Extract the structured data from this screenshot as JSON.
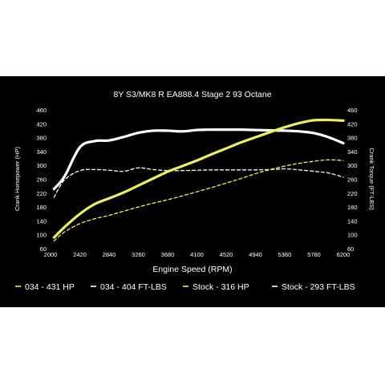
{
  "chart_data": {
    "type": "line",
    "title": "8Y S3/MK8 R EA888.4 Stage 2 93 Octane",
    "xlabel": "Engine Speed (RPM)",
    "ylabel_left": "Crank Horsepower (HP)",
    "ylabel_right": "Crank Torque (FT-LBS)",
    "xlim": [
      2000,
      6200
    ],
    "ylim": [
      60,
      460
    ],
    "x_ticks": [
      "2000",
      "2420",
      "2840",
      "3260",
      "3680",
      "4100",
      "4520",
      "4940",
      "5360",
      "5780",
      "6200"
    ],
    "y_ticks": [
      "60",
      "80",
      "100",
      "120",
      "140",
      "160",
      "180",
      "200",
      "220",
      "240",
      "260",
      "280",
      "300",
      "320",
      "340",
      "360",
      "380",
      "400",
      "420",
      "440",
      "460"
    ],
    "grid": false,
    "legend_position": "bottom",
    "colors": {
      "background": "#000000",
      "white": "#ffffff",
      "yellow": "#f0ee5a"
    },
    "series": [
      {
        "name": "034 - 431 HP",
        "color": "#f0ee5a",
        "style": "solid",
        "x": [
          2050,
          2200,
          2420,
          2630,
          2840,
          3050,
          3260,
          3470,
          3680,
          3890,
          4100,
          4310,
          4520,
          4730,
          4940,
          5150,
          5360,
          5570,
          5780,
          5990,
          6200
        ],
        "y": [
          92,
          122,
          160,
          188,
          205,
          222,
          242,
          262,
          282,
          298,
          314,
          332,
          349,
          366,
          381,
          396,
          410,
          422,
          430,
          431,
          429
        ]
      },
      {
        "name": "034 - 404 FT-LBS",
        "color": "#ffffff",
        "style": "solid",
        "x": [
          2050,
          2200,
          2420,
          2630,
          2840,
          3050,
          3260,
          3470,
          3680,
          3890,
          4100,
          4310,
          4520,
          4730,
          4940,
          5150,
          5360,
          5570,
          5780,
          5990,
          6200
        ],
        "y": [
          232,
          268,
          352,
          370,
          372,
          382,
          394,
          400,
          400,
          398,
          402,
          403,
          403,
          403,
          402,
          401,
          400,
          398,
          393,
          381,
          364
        ]
      },
      {
        "name": "Stock - 316 HP",
        "color": "#f0ee5a",
        "style": "dashed",
        "x": [
          2050,
          2200,
          2420,
          2630,
          2840,
          3050,
          3260,
          3470,
          3680,
          3890,
          4100,
          4310,
          4520,
          4730,
          4940,
          5150,
          5360,
          5570,
          5780,
          5990,
          6200
        ],
        "y": [
          82,
          108,
          132,
          146,
          156,
          168,
          180,
          191,
          201,
          212,
          224,
          236,
          249,
          262,
          276,
          288,
          298,
          306,
          312,
          316,
          314
        ]
      },
      {
        "name": "Stock - 293 FT-LBS",
        "color": "#ffffff",
        "style": "dashed",
        "x": [
          2050,
          2200,
          2420,
          2630,
          2840,
          3050,
          3260,
          3470,
          3680,
          3890,
          4100,
          4310,
          4520,
          4730,
          4940,
          5150,
          5360,
          5570,
          5780,
          5990,
          6200
        ],
        "y": [
          208,
          258,
          285,
          288,
          286,
          283,
          293,
          288,
          285,
          285,
          286,
          287,
          287,
          287,
          287,
          288,
          290,
          287,
          283,
          278,
          266
        ]
      }
    ]
  }
}
